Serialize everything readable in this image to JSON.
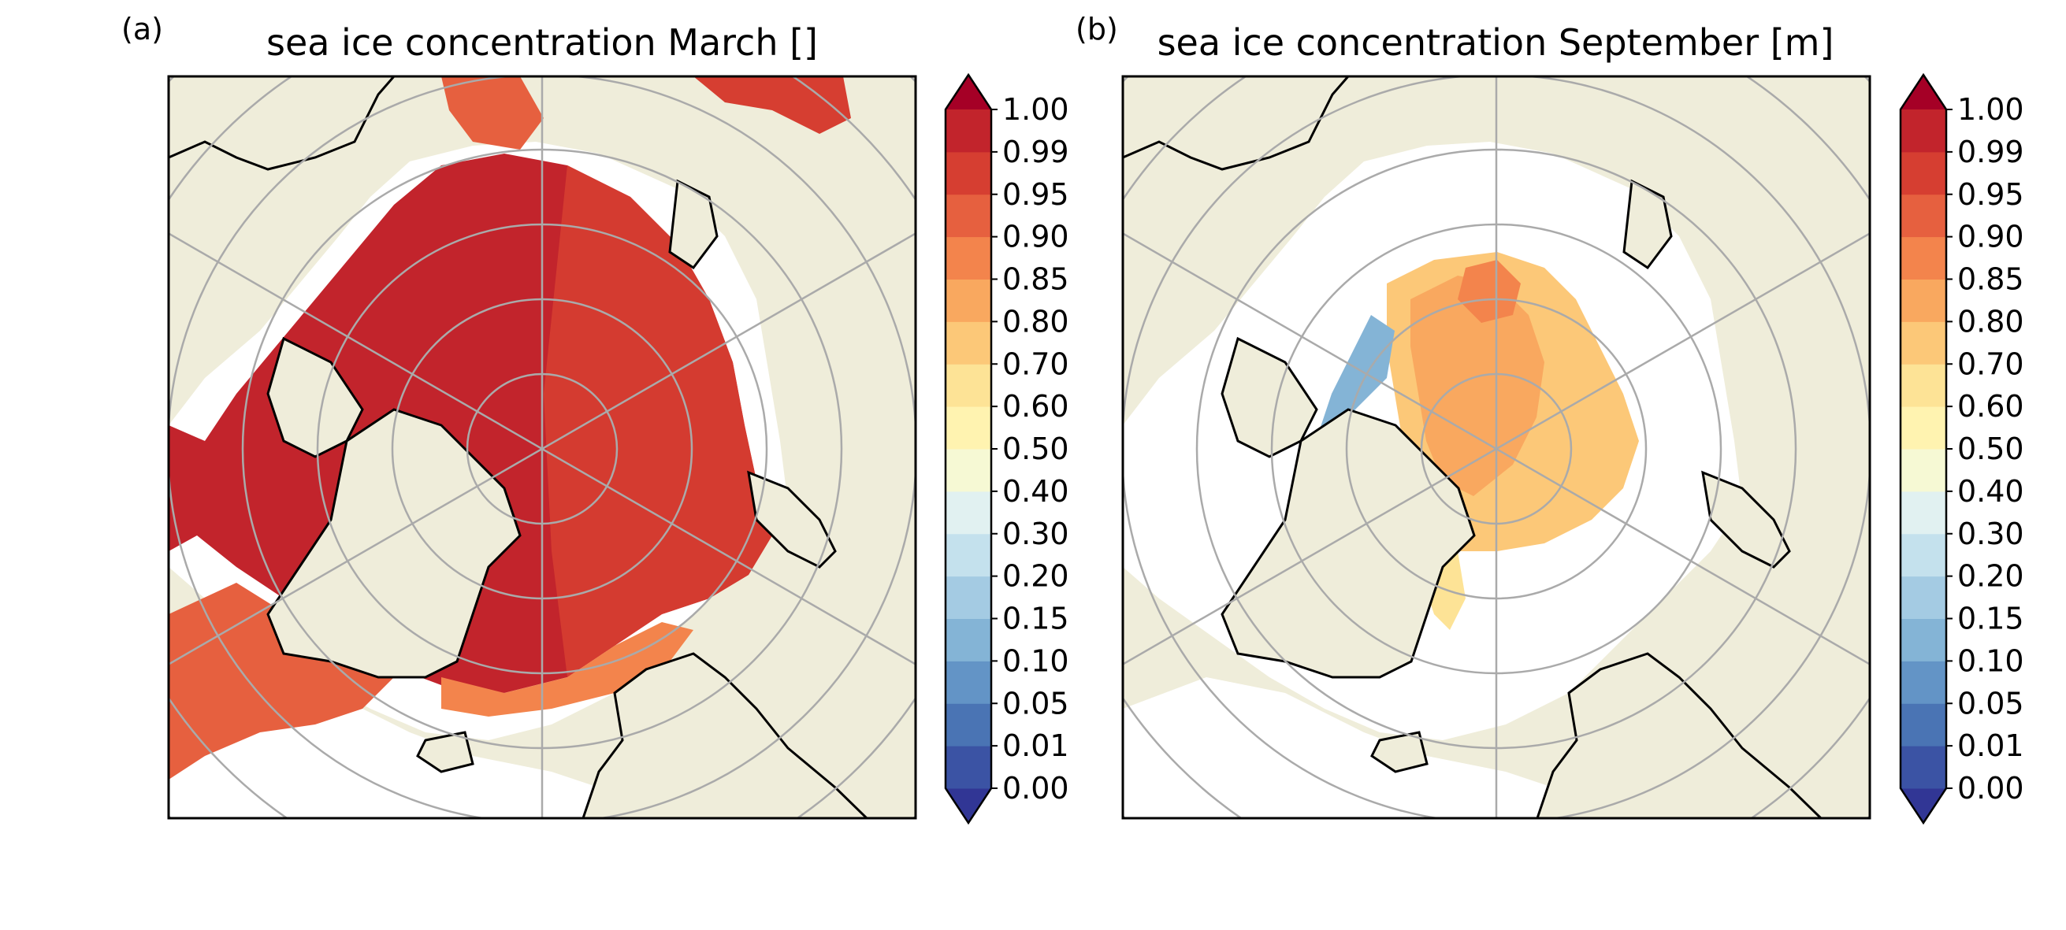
{
  "panels": [
    {
      "label": "(a)",
      "title": "sea ice concentration March []",
      "month": "March"
    },
    {
      "label": "(b)",
      "title": "sea ice concentration September [m]",
      "month": "September"
    }
  ],
  "colorbar": {
    "levels": [
      "0.00",
      "0.01",
      "0.05",
      "0.10",
      "0.15",
      "0.20",
      "0.30",
      "0.40",
      "0.50",
      "0.60",
      "0.70",
      "0.80",
      "0.85",
      "0.90",
      "0.95",
      "0.99",
      "1.00"
    ],
    "colors": [
      "#3b53a4",
      "#4a74b4",
      "#6394c6",
      "#84b4d6",
      "#a4cbe3",
      "#c4e1ed",
      "#e1f1f1",
      "#f6f9d4",
      "#fff3b0",
      "#fde396",
      "#fcc878",
      "#f9a85f",
      "#f3844c",
      "#e6603f",
      "#d63e31",
      "#c2242c"
    ],
    "under_color": "#313695",
    "over_color": "#a50026",
    "extend": "both"
  },
  "map_colors": {
    "land": "#efedda",
    "ocean": "#ffffff",
    "coastline": "#000000",
    "gridlines": "#aaaaaa"
  }
}
